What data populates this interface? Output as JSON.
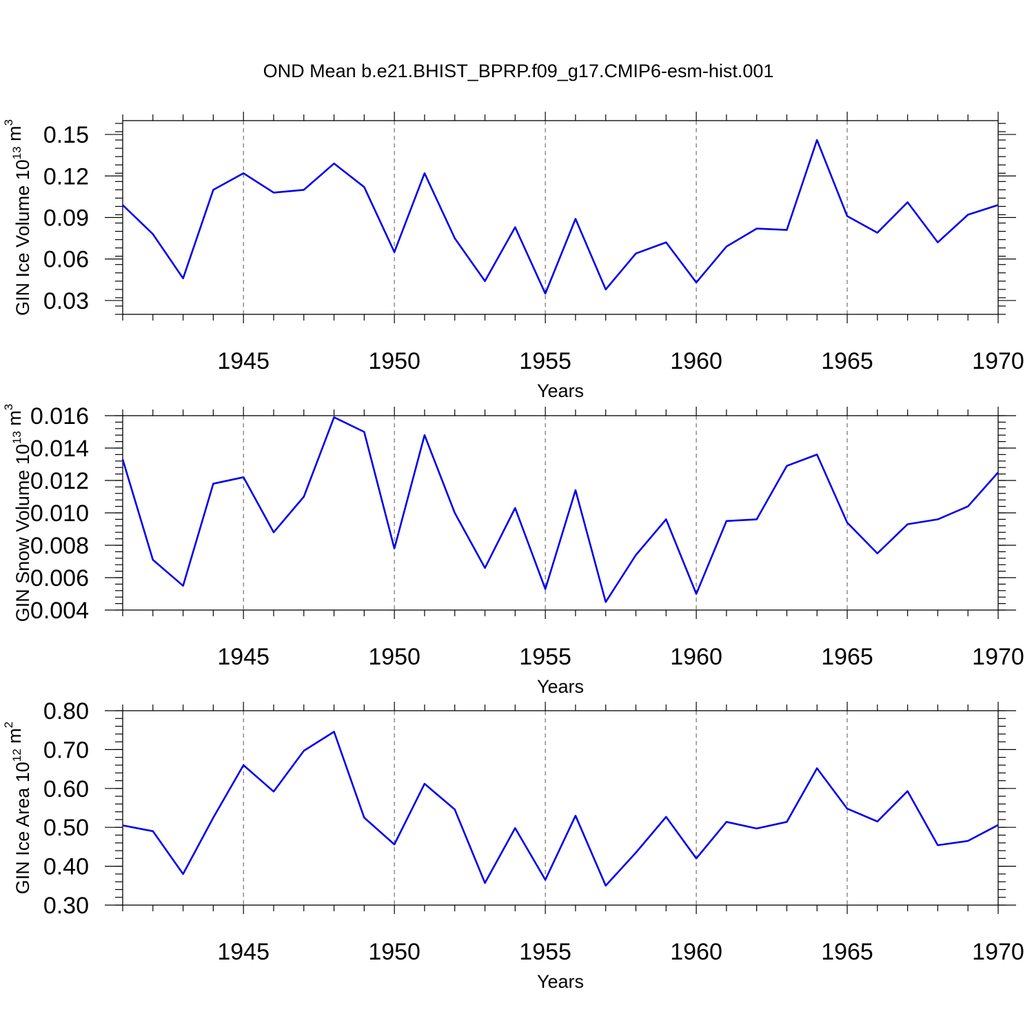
{
  "chart_data": [
    {
      "type": "line",
      "title": "OND Mean b.e21.BHIST_BPRP.f09_g17.CMIP6-esm-hist.001",
      "xlabel": "Years",
      "ylabel": "GIN Ice Volume 10",
      "ylabel_exp": "13",
      "ylabel_unit": " m",
      "ylabel_unit_exp": "3",
      "x": [
        1941,
        1942,
        1943,
        1944,
        1945,
        1946,
        1947,
        1948,
        1949,
        1950,
        1951,
        1952,
        1953,
        1954,
        1955,
        1956,
        1957,
        1958,
        1959,
        1960,
        1961,
        1962,
        1963,
        1964,
        1965,
        1966,
        1967,
        1968,
        1969,
        1970
      ],
      "xlim": [
        1941,
        1970
      ],
      "xticks": [
        "1945",
        "1950",
        "1955",
        "1960",
        "1965",
        "1970"
      ],
      "values": [
        0.099,
        0.078,
        0.046,
        0.11,
        0.122,
        0.108,
        0.11,
        0.129,
        0.112,
        0.065,
        0.122,
        0.075,
        0.044,
        0.083,
        0.035,
        0.089,
        0.038,
        0.064,
        0.072,
        0.043,
        0.069,
        0.082,
        0.081,
        0.146,
        0.091,
        0.079,
        0.101,
        0.072,
        0.092,
        0.099
      ],
      "ylim": [
        0.02,
        0.16
      ],
      "yticks": [
        "0.03",
        "0.06",
        "0.09",
        "0.12",
        "0.15"
      ],
      "ytick_values": [
        0.03,
        0.06,
        0.09,
        0.12,
        0.15
      ],
      "line_color": "#0000ee",
      "grid": "dashed vertical at major x ticks"
    },
    {
      "type": "line",
      "title": "",
      "xlabel": "Years",
      "ylabel": "GIN Snow Volume 10",
      "ylabel_exp": "13",
      "ylabel_unit": " m",
      "ylabel_unit_exp": "3",
      "x": [
        1941,
        1942,
        1943,
        1944,
        1945,
        1946,
        1947,
        1948,
        1949,
        1950,
        1951,
        1952,
        1953,
        1954,
        1955,
        1956,
        1957,
        1958,
        1959,
        1960,
        1961,
        1962,
        1963,
        1964,
        1965,
        1966,
        1967,
        1968,
        1969,
        1970
      ],
      "xlim": [
        1941,
        1970
      ],
      "xticks": [
        "1945",
        "1950",
        "1955",
        "1960",
        "1965",
        "1970"
      ],
      "values": [
        0.0133,
        0.0071,
        0.0055,
        0.0118,
        0.0122,
        0.0088,
        0.011,
        0.0159,
        0.015,
        0.0078,
        0.0148,
        0.01,
        0.0066,
        0.0103,
        0.0053,
        0.0114,
        0.0045,
        0.0074,
        0.0096,
        0.005,
        0.0095,
        0.0096,
        0.0129,
        0.0136,
        0.0094,
        0.0075,
        0.0093,
        0.0096,
        0.0104,
        0.0125
      ],
      "ylim": [
        0.004,
        0.016
      ],
      "yticks": [
        "0.004",
        "0.006",
        "0.008",
        "0.010",
        "0.012",
        "0.014",
        "0.016"
      ],
      "ytick_values": [
        0.004,
        0.006,
        0.008,
        0.01,
        0.012,
        0.014,
        0.016
      ],
      "line_color": "#0000ee",
      "grid": "dashed vertical at major x ticks"
    },
    {
      "type": "line",
      "title": "",
      "xlabel": "Years",
      "ylabel": "GIN Ice Area 10",
      "ylabel_exp": "12",
      "ylabel_unit": " m",
      "ylabel_unit_exp": "2",
      "x": [
        1941,
        1942,
        1943,
        1944,
        1945,
        1946,
        1947,
        1948,
        1949,
        1950,
        1951,
        1952,
        1953,
        1954,
        1955,
        1956,
        1957,
        1958,
        1959,
        1960,
        1961,
        1962,
        1963,
        1964,
        1965,
        1966,
        1967,
        1968,
        1969,
        1970
      ],
      "xlim": [
        1941,
        1970
      ],
      "xticks": [
        "1945",
        "1950",
        "1955",
        "1960",
        "1965",
        "1970"
      ],
      "values": [
        0.505,
        0.49,
        0.38,
        0.525,
        0.66,
        0.592,
        0.697,
        0.746,
        0.525,
        0.456,
        0.612,
        0.546,
        0.357,
        0.498,
        0.365,
        0.53,
        0.35,
        0.435,
        0.527,
        0.42,
        0.514,
        0.497,
        0.514,
        0.652,
        0.548,
        0.515,
        0.593,
        0.454,
        0.465,
        0.506
      ],
      "ylim": [
        0.3,
        0.8
      ],
      "yticks": [
        "0.30",
        "0.40",
        "0.50",
        "0.60",
        "0.70",
        "0.80"
      ],
      "ytick_values": [
        0.3,
        0.4,
        0.5,
        0.6,
        0.7,
        0.8
      ],
      "line_color": "#0000ee",
      "grid": "dashed vertical at major x ticks"
    }
  ]
}
